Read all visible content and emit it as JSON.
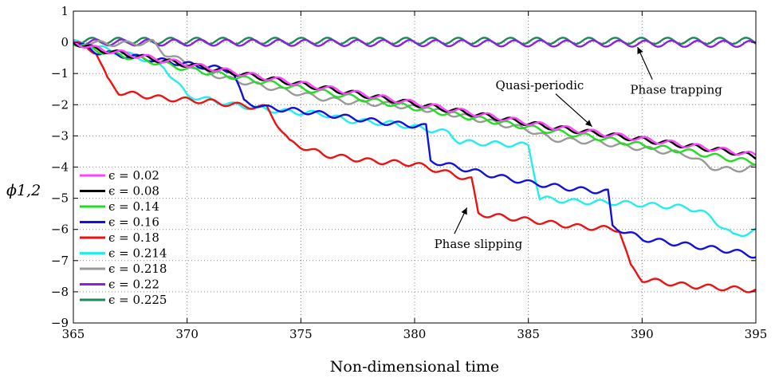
{
  "chart_data": {
    "type": "line",
    "xlabel": "Non-dimensional time",
    "ylabel": "ϕ1,2",
    "xlim": [
      365,
      395
    ],
    "ylim": [
      -9,
      1
    ],
    "xticks": [
      365,
      370,
      375,
      380,
      385,
      390,
      395
    ],
    "yticks": [
      1,
      0,
      -1,
      -2,
      -3,
      -4,
      -5,
      -6,
      -7,
      -8,
      -9
    ],
    "grid": true,
    "legend_position": "bottom-left",
    "series": [
      {
        "name": "ϵ = 0.02",
        "color": "#ff44ff",
        "x": [
          365,
          366,
          368,
          370,
          372,
          374,
          376,
          378,
          380,
          382,
          384,
          386,
          388,
          390,
          392,
          394,
          395
        ],
        "y": [
          0,
          -0.2,
          -0.45,
          -0.7,
          -0.95,
          -1.2,
          -1.45,
          -1.7,
          -1.95,
          -2.2,
          -2.45,
          -2.7,
          -2.9,
          -3.1,
          -3.3,
          -3.5,
          -3.62
        ]
      },
      {
        "name": "ϵ = 0.08",
        "color": "#000000",
        "x": [
          365,
          366,
          368,
          370,
          372,
          374,
          376,
          378,
          380,
          382,
          384,
          386,
          388,
          390,
          392,
          394,
          395
        ],
        "y": [
          0,
          -0.22,
          -0.47,
          -0.72,
          -0.97,
          -1.22,
          -1.47,
          -1.72,
          -1.97,
          -2.22,
          -2.47,
          -2.72,
          -2.92,
          -3.12,
          -3.32,
          -3.52,
          -3.68
        ]
      },
      {
        "name": "ϵ = 0.14",
        "color": "#22dd22",
        "x": [
          365,
          366,
          368,
          370,
          372,
          374,
          376,
          378,
          380,
          382,
          384,
          386,
          388,
          390,
          392,
          394,
          395
        ],
        "y": [
          0,
          -0.25,
          -0.55,
          -0.85,
          -1.1,
          -1.35,
          -1.6,
          -1.85,
          -2.1,
          -2.35,
          -2.6,
          -2.85,
          -3.05,
          -3.3,
          -3.5,
          -3.75,
          -3.85
        ]
      },
      {
        "name": "ϵ = 0.16",
        "color": "#1111dd",
        "x": [
          365,
          366,
          368,
          370,
          372,
          372.5,
          373.5,
          375,
          377,
          379,
          380.5,
          380.7,
          383,
          385,
          387,
          388.5,
          388.7,
          390,
          392,
          394,
          395
        ],
        "y": [
          0,
          -0.3,
          -0.5,
          -0.7,
          -0.9,
          -1.9,
          -2.1,
          -2.2,
          -2.4,
          -2.6,
          -2.7,
          -3.8,
          -4.2,
          -4.5,
          -4.7,
          -4.8,
          -5.9,
          -6.3,
          -6.5,
          -6.7,
          -6.85
        ]
      },
      {
        "name": "ϵ = 0.18",
        "color": "#ee1111",
        "x": [
          365,
          366,
          366.5,
          367,
          369,
          371,
          372,
          373.5,
          374.5,
          376,
          378,
          380,
          381.5,
          382.5,
          382.8,
          385,
          387,
          389,
          389.5,
          390,
          392,
          394,
          395
        ],
        "y": [
          0,
          -0.3,
          -1.2,
          -1.6,
          -1.8,
          -1.9,
          -2.0,
          -2.1,
          -3.2,
          -3.6,
          -3.8,
          -3.9,
          -4.2,
          -4.4,
          -5.5,
          -5.7,
          -5.9,
          -6.0,
          -7.2,
          -7.6,
          -7.8,
          -7.9,
          -7.95
        ]
      },
      {
        "name": "ϵ = 0.214",
        "color": "#22eeee",
        "x": [
          365,
          366,
          368,
          369,
          370,
          372,
          374,
          376,
          377,
          379,
          381.5,
          382,
          385,
          385.5,
          387,
          389,
          392,
          392.5,
          393,
          394,
          395
        ],
        "y": [
          0,
          -0.15,
          -0.5,
          -0.8,
          -1.7,
          -2.0,
          -2.2,
          -2.3,
          -2.5,
          -2.6,
          -2.9,
          -3.2,
          -3.3,
          -5.0,
          -5.1,
          -5.15,
          -5.3,
          -5.4,
          -5.6,
          -6.2,
          -6.05
        ]
      },
      {
        "name": "ϵ = 0.218",
        "color": "#999999",
        "x": [
          365,
          367,
          368.5,
          369,
          371,
          372,
          374,
          376,
          377,
          379,
          381,
          383,
          385,
          386,
          388,
          390,
          392,
          393,
          394,
          395
        ],
        "y": [
          0,
          -0.05,
          0,
          -0.35,
          -1.0,
          -1.2,
          -1.5,
          -1.8,
          -1.9,
          -2.0,
          -2.2,
          -2.5,
          -2.8,
          -3.1,
          -3.2,
          -3.4,
          -3.6,
          -4.0,
          -4.1,
          -4.0
        ]
      },
      {
        "name": "ϵ = 0.22",
        "color": "#8822dd",
        "x": [
          365,
          395
        ],
        "y": [
          0,
          -0.05
        ]
      },
      {
        "name": "ϵ = 0.225",
        "color": "#228855",
        "x": [
          365,
          395
        ],
        "y": [
          0.05,
          0.05
        ]
      }
    ],
    "annotations": [
      {
        "text": "Quasi-periodic",
        "x": 385.5,
        "y": -1.5,
        "arrow_to": [
          387.8,
          -2.7
        ]
      },
      {
        "text": "Phase trapping",
        "x": 391.5,
        "y": -1.65,
        "arrow_to": [
          389.8,
          -0.15
        ]
      },
      {
        "text": "Phase slipping",
        "x": 382.8,
        "y": -6.6,
        "arrow_to": [
          382.3,
          -5.3
        ]
      }
    ]
  }
}
